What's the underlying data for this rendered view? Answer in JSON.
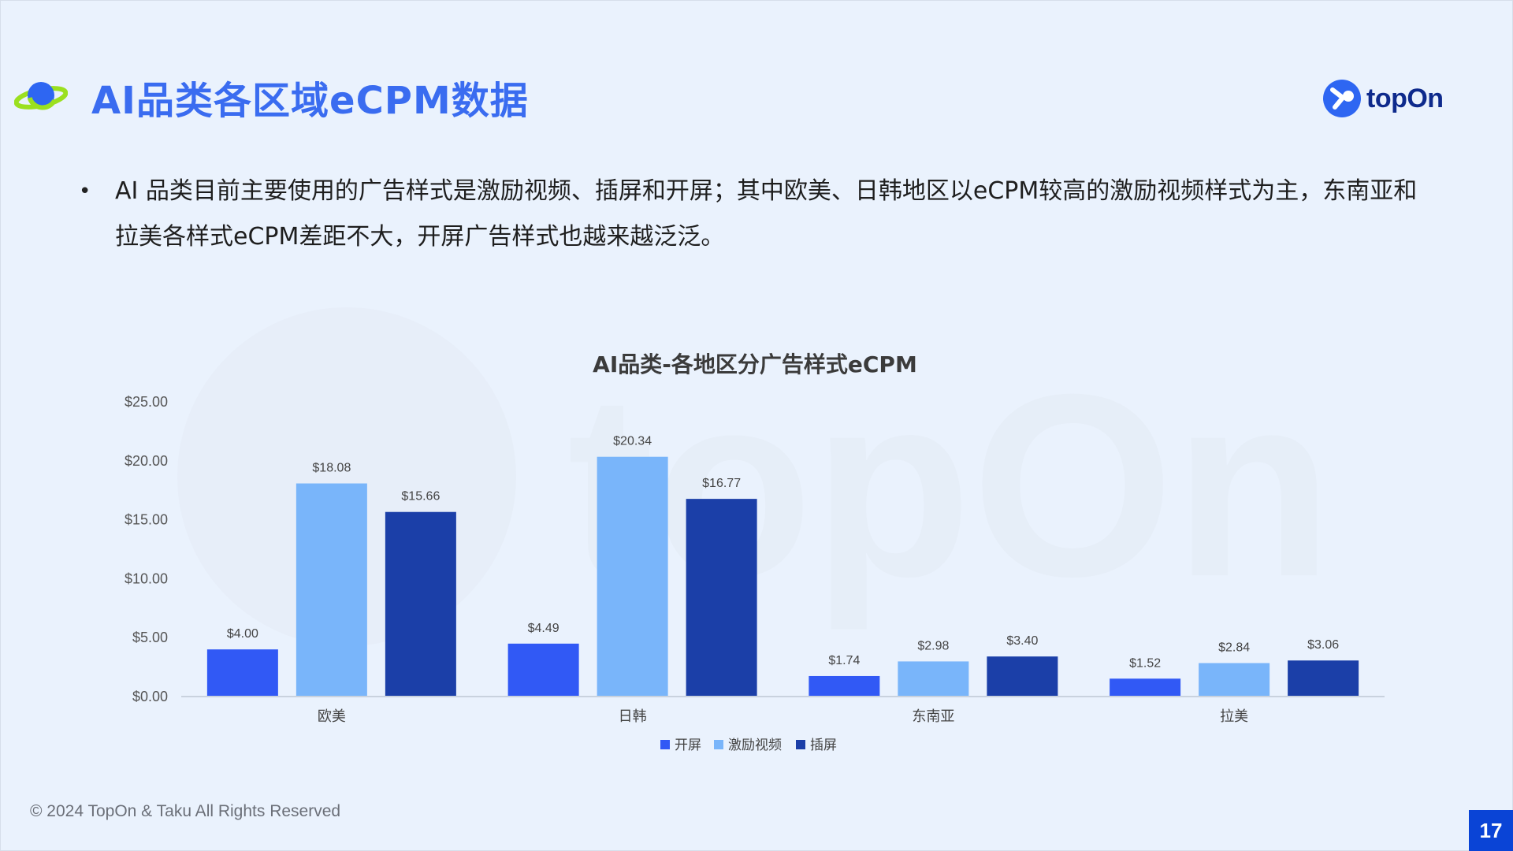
{
  "header": {
    "title": "AI品类各区域eCPM数据",
    "logo_text": "topOn"
  },
  "bullet": {
    "text": "AI 品类目前主要使用的广告样式是激励视频、插屏和开屏；其中欧美、日韩地区以eCPM较高的激励视频样式为主，东南亚和拉美各样式eCPM差距不大，开屏广告样式也越来越泛泛。"
  },
  "colors": {
    "background": "#EAF2FD",
    "accent": "#3A6CF0",
    "series": [
      "#3159F5",
      "#79B5FA",
      "#1B3FA8"
    ]
  },
  "chart_data": {
    "type": "bar",
    "title": "AI品类-各地区分广告样式eCPM",
    "categories": [
      "欧美",
      "日韩",
      "东南亚",
      "拉美"
    ],
    "series": [
      {
        "name": "开屏",
        "values": [
          4.0,
          4.49,
          1.74,
          1.52
        ]
      },
      {
        "name": "激励视频",
        "values": [
          18.08,
          20.34,
          2.98,
          2.84
        ]
      },
      {
        "name": "插屏",
        "values": [
          15.66,
          16.77,
          3.4,
          3.06
        ]
      }
    ],
    "data_labels": [
      [
        "$4.00",
        "$4.49",
        "$1.74",
        "$1.52"
      ],
      [
        "$18.08",
        "$20.34",
        "$2.98",
        "$2.84"
      ],
      [
        "$15.66",
        "$16.77",
        "$3.40",
        "$3.06"
      ]
    ],
    "yticks": [
      "$0.00",
      "$5.00",
      "$10.00",
      "$15.00",
      "$20.00",
      "$25.00"
    ],
    "ylim": [
      0,
      25
    ],
    "legend_position": "bottom"
  },
  "footer": {
    "copyright": "© 2024 TopOn & Taku All Rights Reserved",
    "page_number": "17"
  }
}
